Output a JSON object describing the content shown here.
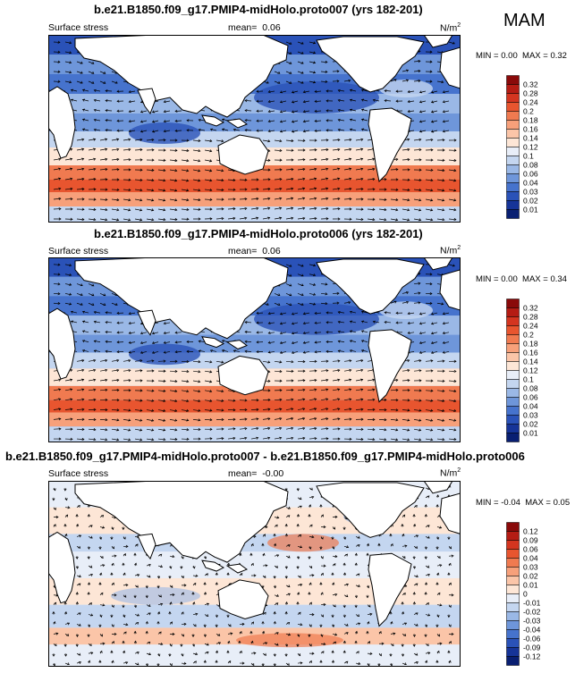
{
  "season": "MAM",
  "panels": [
    {
      "title": "b.e21.B1850.f09_g17.PMIP4-midHolo.proto007 (yrs 182-201)",
      "left_label": "Surface stress",
      "mean_label": "mean=",
      "mean_value": "0.06",
      "units": "N/m",
      "units_sup": "2",
      "min_label": "MIN =",
      "min_value": "0.00",
      "max_label": "MAX =",
      "max_value": "0.32",
      "colorbar": [
        "0.32",
        "0.28",
        "0.24",
        "0.2",
        "0.18",
        "0.16",
        "0.14",
        "0.12",
        "0.1",
        "0.08",
        "0.06",
        "0.04",
        "0.03",
        "0.02",
        "0.01"
      ],
      "colors": [
        "#8a0a0a",
        "#b51c14",
        "#d43520",
        "#e8552f",
        "#f07a50",
        "#f7a07a",
        "#fbc5a8",
        "#fde6d6",
        "#e8eef8",
        "#c4d6f0",
        "#9ab8e6",
        "#6e96da",
        "#4673cd",
        "#2a52b8",
        "#163498",
        "#091f72"
      ]
    },
    {
      "title": "b.e21.B1850.f09_g17.PMIP4-midHolo.proto006 (yrs 182-201)",
      "left_label": "Surface stress",
      "mean_label": "mean=",
      "mean_value": "0.06",
      "units": "N/m",
      "units_sup": "2",
      "min_label": "MIN =",
      "min_value": "0.00",
      "max_label": "MAX =",
      "max_value": "0.34",
      "colorbar": [
        "0.32",
        "0.28",
        "0.24",
        "0.2",
        "0.18",
        "0.16",
        "0.14",
        "0.12",
        "0.1",
        "0.08",
        "0.06",
        "0.04",
        "0.03",
        "0.02",
        "0.01"
      ],
      "colors": [
        "#8a0a0a",
        "#b51c14",
        "#d43520",
        "#e8552f",
        "#f07a50",
        "#f7a07a",
        "#fbc5a8",
        "#fde6d6",
        "#e8eef8",
        "#c4d6f0",
        "#9ab8e6",
        "#6e96da",
        "#4673cd",
        "#2a52b8",
        "#163498",
        "#091f72"
      ]
    },
    {
      "title": "b.e21.B1850.f09_g17.PMIP4-midHolo.proto007 - b.e21.B1850.f09_g17.PMIP4-midHolo.proto006",
      "left_label": "Surface stress",
      "mean_label": "mean=",
      "mean_value": "-0.00",
      "units": "N/m",
      "units_sup": "2",
      "min_label": "MIN =",
      "min_value": "-0.04",
      "max_label": "MAX =",
      "max_value": "0.05",
      "colorbar": [
        "0.12",
        "0.09",
        "0.06",
        "0.04",
        "0.03",
        "0.02",
        "0.01",
        "0",
        "-0.01",
        "-0.02",
        "-0.03",
        "-0.04",
        "-0.06",
        "-0.09",
        "-0.12"
      ],
      "colors": [
        "#8a0a0a",
        "#b51c14",
        "#d43520",
        "#e8552f",
        "#f07a50",
        "#f7a07a",
        "#fbc5a8",
        "#fde6d6",
        "#e8eef8",
        "#c4d6f0",
        "#9ab8e6",
        "#6e96da",
        "#4673cd",
        "#2a52b8",
        "#163498",
        "#091f72"
      ]
    }
  ]
}
